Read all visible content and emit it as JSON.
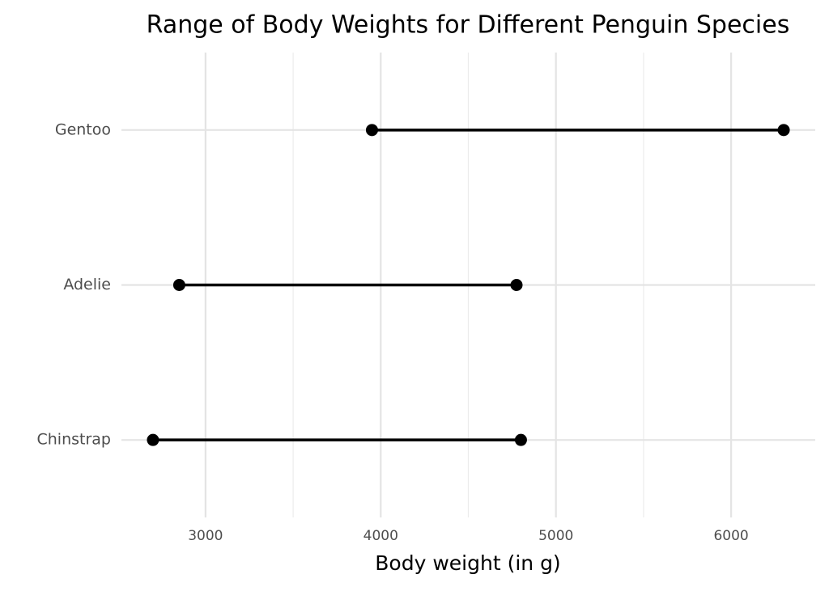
{
  "chart_data": {
    "type": "dumbbell",
    "title": "Range of Body Weights for Different Penguin Species",
    "x_label": "Body weight (in g)",
    "categories": [
      "Gentoo",
      "Adelie",
      "Chinstrap"
    ],
    "values_min": [
      3950,
      2850,
      2700
    ],
    "values_max": [
      6300,
      4775,
      4800
    ],
    "color": "#000000",
    "xlim": [
      2520,
      6480
    ],
    "xticks": [
      3000,
      4000,
      5000,
      6000
    ],
    "grid": true,
    "minor_grid": true
  }
}
